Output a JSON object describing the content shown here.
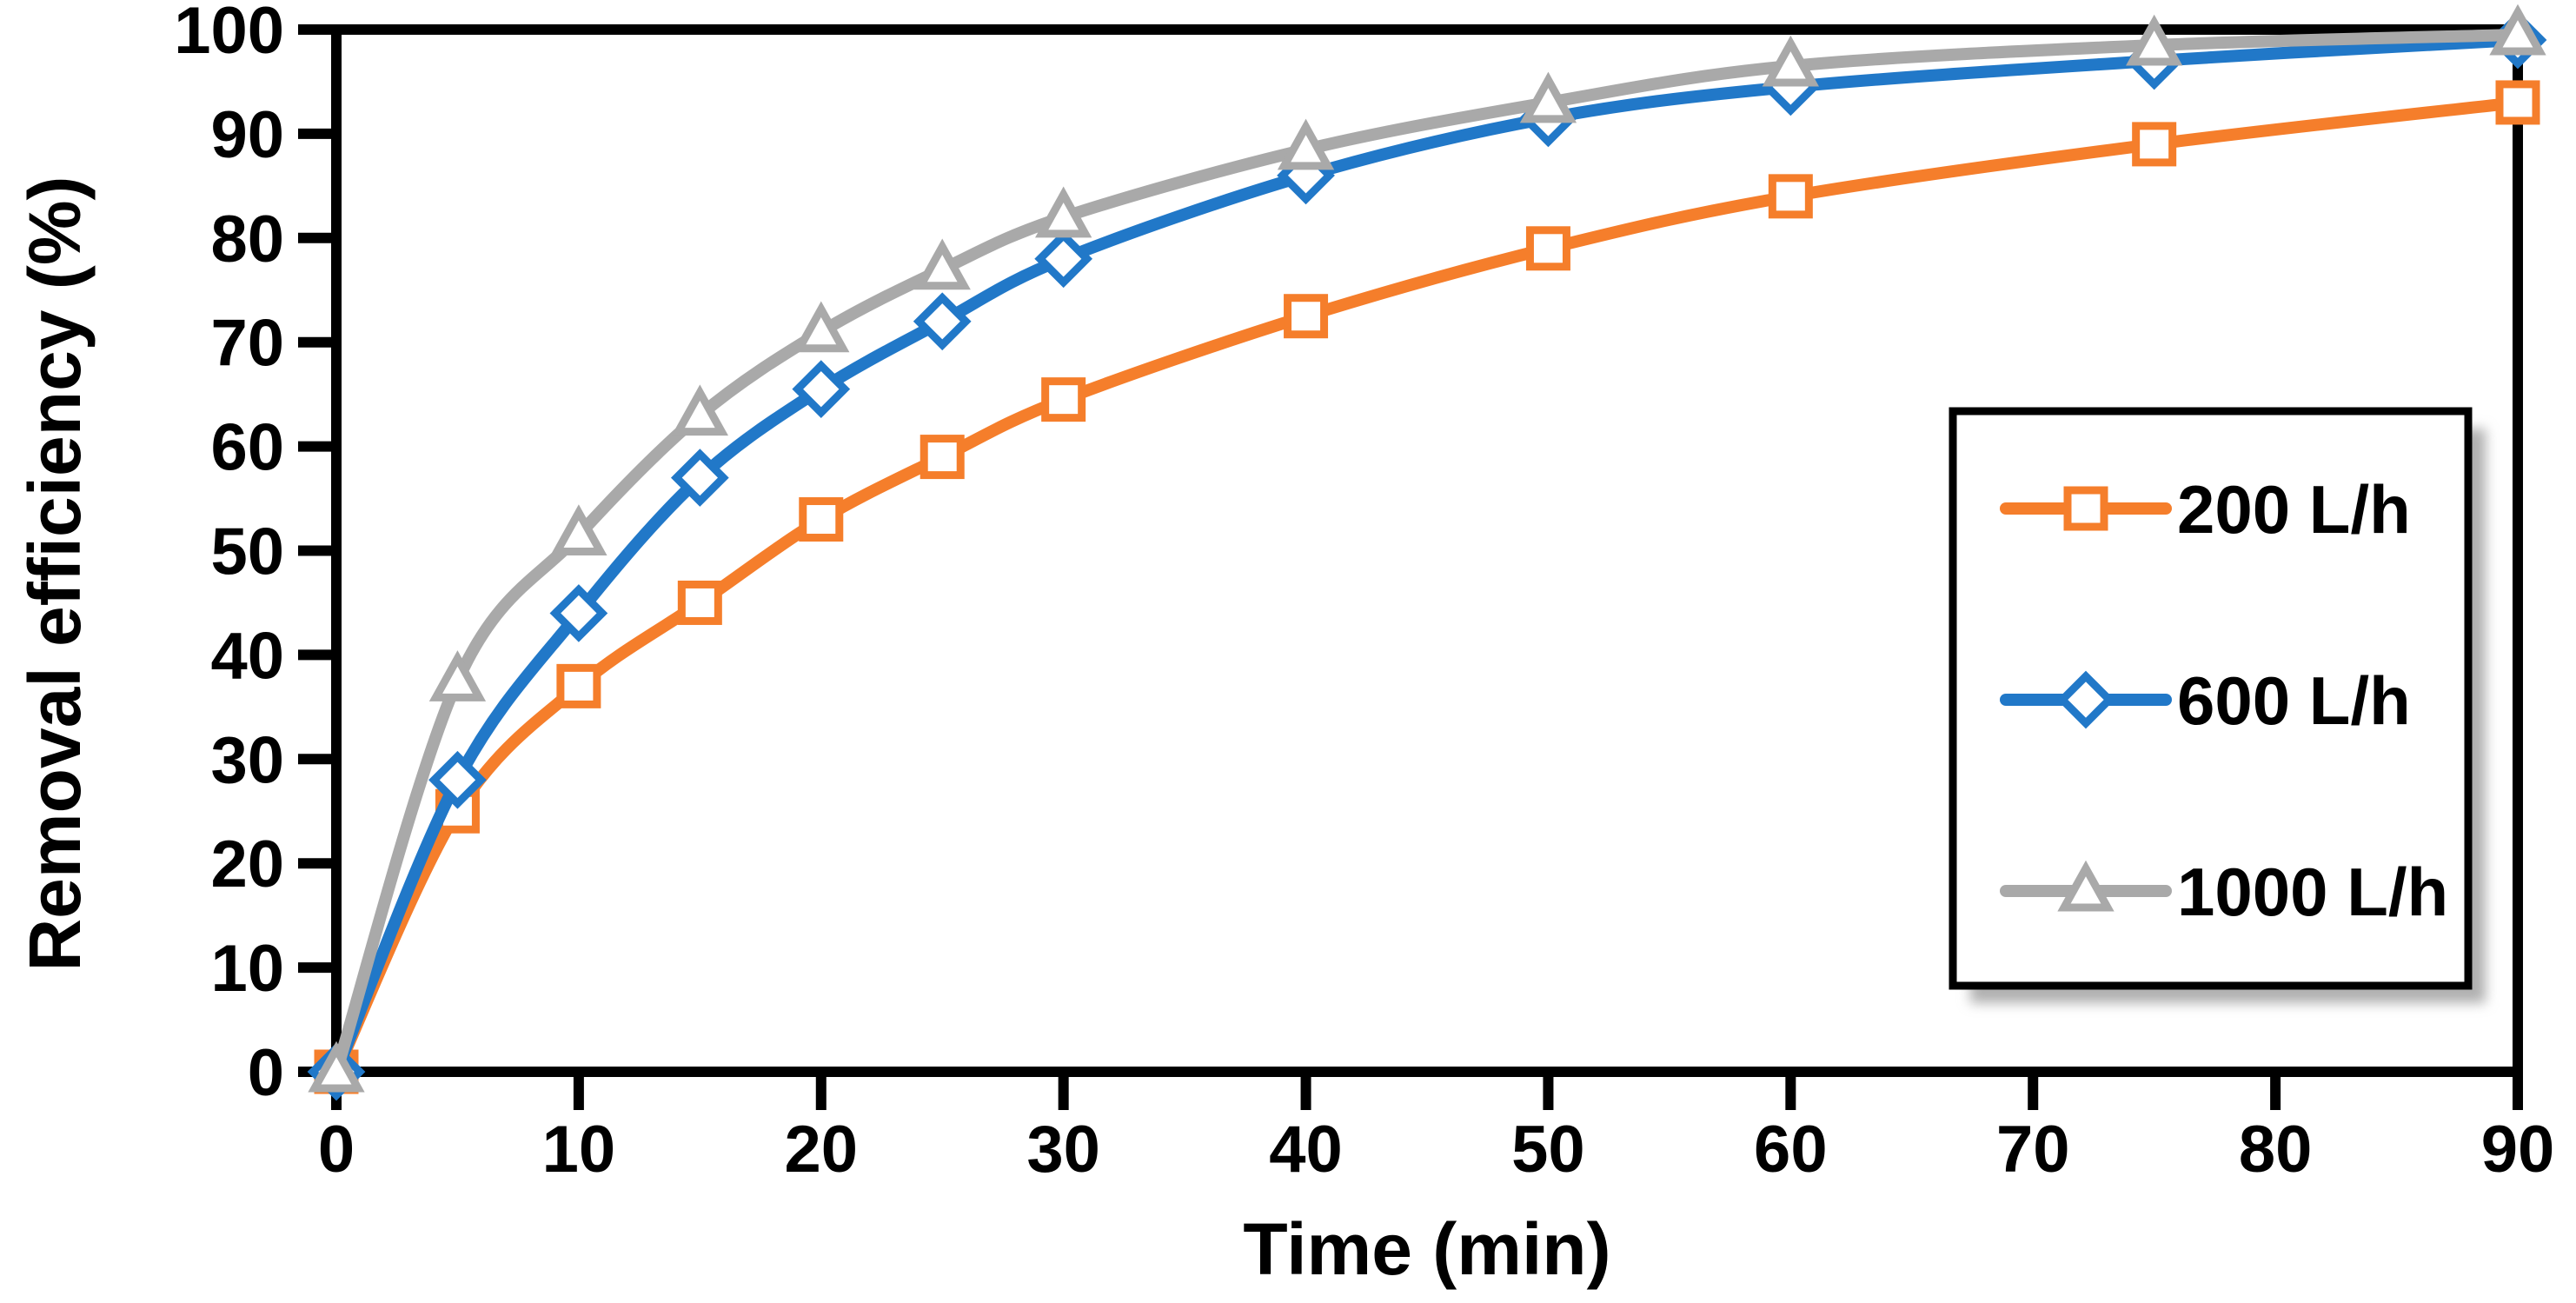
{
  "chart_data": {
    "type": "line",
    "title": "",
    "xlabel": "Time (min)",
    "ylabel": "Removal efficiency (%)",
    "x": [
      0,
      5,
      10,
      15,
      20,
      25,
      30,
      40,
      50,
      60,
      75,
      90
    ],
    "xlim": [
      0,
      90
    ],
    "ylim": [
      0,
      100
    ],
    "x_ticks": [
      0,
      10,
      20,
      30,
      40,
      50,
      60,
      70,
      80,
      90
    ],
    "y_ticks": [
      0,
      10,
      20,
      30,
      40,
      50,
      60,
      70,
      80,
      90,
      100
    ],
    "grid": false,
    "line_smoothing": true,
    "legend_position": "inside-right",
    "axis_color": "#000000",
    "background_color": "#ffffff",
    "legend_shadow_color": "#b0b0b0",
    "series": [
      {
        "name": "200 L/h",
        "color": "#F57E2B",
        "marker": "square",
        "values": [
          0,
          25,
          37,
          45,
          53,
          59,
          64.5,
          72.5,
          79,
          84,
          89,
          93
        ]
      },
      {
        "name": "600 L/h",
        "color": "#2178C8",
        "marker": "diamond",
        "values": [
          0,
          28,
          44,
          57,
          65.5,
          72,
          78,
          86,
          91.5,
          94.5,
          97,
          99
        ]
      },
      {
        "name": "1000 L/h",
        "color": "#A9A9A9",
        "marker": "triangle",
        "values": [
          0,
          37.5,
          51.5,
          63,
          71,
          77,
          82,
          88.5,
          93,
          96.5,
          98.5,
          99.5
        ]
      }
    ]
  }
}
